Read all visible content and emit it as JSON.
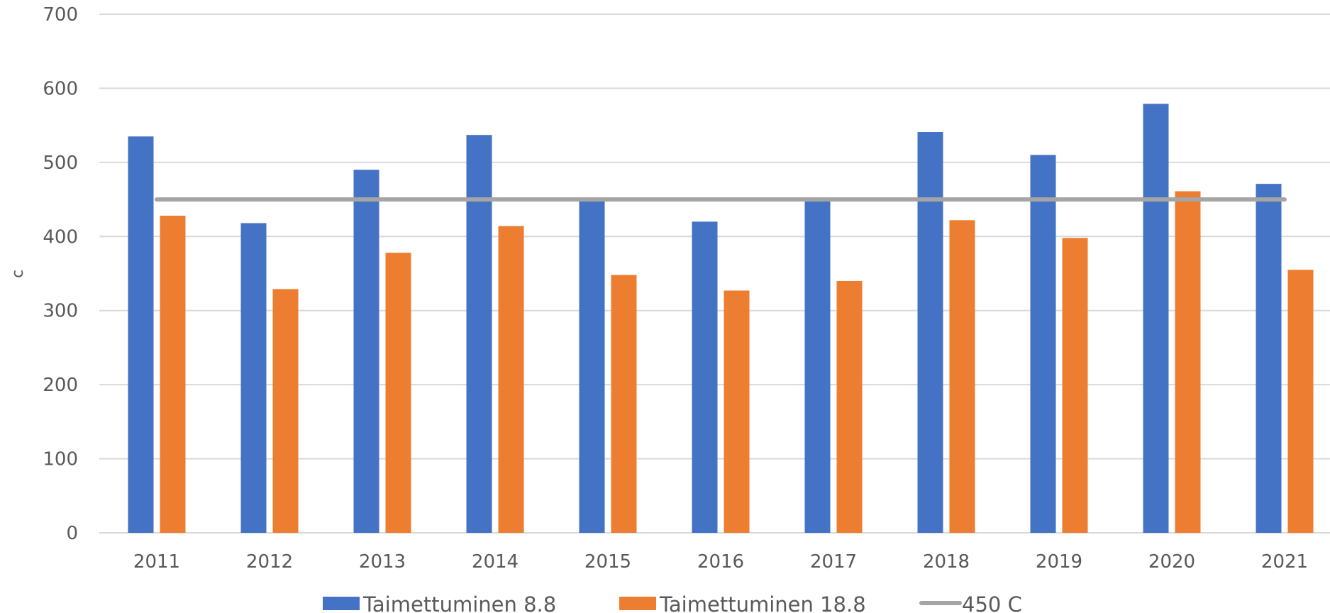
{
  "chart_data": {
    "type": "bar",
    "title": "",
    "xlabel": "",
    "ylabel": "c",
    "ylim": [
      0,
      700
    ],
    "yticks": [
      0,
      100,
      200,
      300,
      400,
      500,
      600,
      700
    ],
    "grid": true,
    "legend_position": "bottom",
    "categories": [
      "2011",
      "2012",
      "2013",
      "2014",
      "2015",
      "2016",
      "2017",
      "2018",
      "2019",
      "2020",
      "2021"
    ],
    "series": [
      {
        "name": "Taimettuminen 8.8",
        "type": "bar",
        "color": "#4472c4",
        "values": [
          535,
          418,
          490,
          537,
          451,
          420,
          450,
          541,
          510,
          579,
          471
        ]
      },
      {
        "name": "Taimettuminen 18.8",
        "type": "bar",
        "color": "#ed7d31",
        "values": [
          428,
          329,
          378,
          414,
          348,
          327,
          340,
          422,
          398,
          461,
          355
        ]
      },
      {
        "name": "450 C",
        "type": "line",
        "color": "#a5a5a5",
        "values": [
          450,
          450,
          450,
          450,
          450,
          450,
          450,
          450,
          450,
          450,
          450
        ]
      }
    ]
  }
}
